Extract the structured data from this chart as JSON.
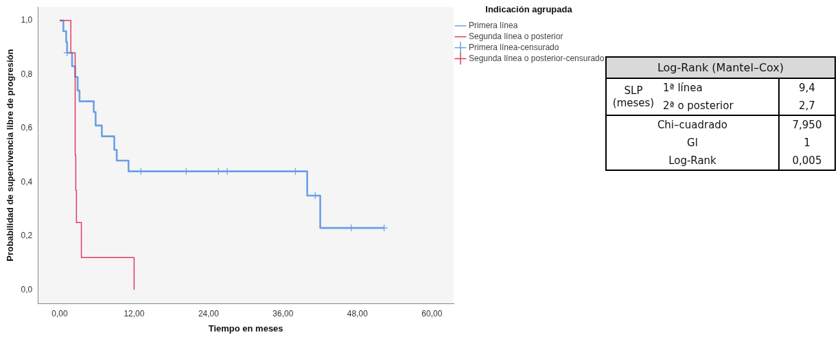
{
  "chart_data": [
    {
      "type": "step",
      "xlabel": "Tiempo en meses",
      "ylabel": "Probabilidad de supervivencia libre de progresión",
      "legend_title": "Indicación agrupada",
      "legend": "right",
      "grid": false,
      "xlim": [
        -3.5,
        63.5
      ],
      "xticks": [
        {
          "value": 0,
          "label": "0,00"
        },
        {
          "value": 12,
          "label": "12,00"
        },
        {
          "value": 24,
          "label": "24,00"
        },
        {
          "value": 36,
          "label": "36,00"
        },
        {
          "value": 48,
          "label": "48,00"
        },
        {
          "value": 60,
          "label": "60,00"
        }
      ],
      "ylim": [
        -0.05,
        1.05
      ],
      "yticks": [
        {
          "value": 0,
          "label": "0,0"
        },
        {
          "value": 0.2,
          "label": "0,2"
        },
        {
          "value": 0.4,
          "label": "0,4"
        },
        {
          "value": 0.6,
          "label": "0,6"
        },
        {
          "value": 0.8,
          "label": "0,8"
        },
        {
          "value": 1,
          "label": "1,0"
        }
      ],
      "series": [
        {
          "name": "Primera línea",
          "type": "step",
          "color": "#6a9fe6",
          "marker": "none",
          "x": [
            0,
            0.6,
            1.05,
            1.2,
            2.0,
            2.5,
            2.9,
            3.2,
            5.5,
            5.8,
            6.8,
            8.8,
            9.2,
            11.1,
            39.9,
            42.0,
            52.3
          ],
          "values": [
            1,
            0.96,
            0.92,
            0.88,
            0.83,
            0.79,
            0.74,
            0.7,
            0.66,
            0.61,
            0.57,
            0.52,
            0.48,
            0.44,
            0.35,
            0.23,
            0.23
          ]
        },
        {
          "name": "Segunda línea o posterior",
          "type": "step",
          "color": "#e03a62",
          "marker": "none",
          "x": [
            0,
            1.8,
            2.5,
            2.6,
            2.7,
            3.5,
            12.0
          ],
          "values": [
            1,
            0.88,
            0.5,
            0.37,
            0.25,
            0.12,
            0
          ]
        },
        {
          "name": "Primera línea-censurado",
          "type": "scatter",
          "color": "#6a9fe6",
          "marker": "cross",
          "x": [
            1.2,
            13.1,
            20.4,
            25.6,
            27.0,
            38.0,
            41.2,
            47.0,
            52.3
          ],
          "values": [
            0.88,
            0.44,
            0.44,
            0.44,
            0.44,
            0.44,
            0.35,
            0.23,
            0.23
          ]
        },
        {
          "name": "Segunda línea o posterior-censurado",
          "type": "scatter",
          "color": "#e03a62",
          "marker": "cross"
        }
      ]
    },
    {
      "type": "other",
      "title": "Log-Rank (Mantel–Cox)",
      "annotations": [
        "SLP (meses)",
        "1ª línea",
        "9,4",
        "2ª o posterior",
        "2,7",
        "Chi–cuadrado",
        "7,950",
        "Gl",
        "1",
        "Log-Rank",
        "0,005"
      ]
    }
  ]
}
